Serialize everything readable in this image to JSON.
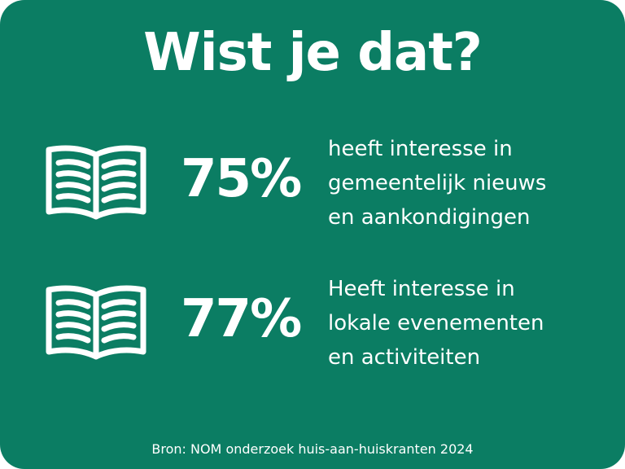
{
  "title": "Wist je dat?",
  "colors": {
    "background": "#0b7d63",
    "text": "#ffffff"
  },
  "stats": [
    {
      "icon": "open-book-icon",
      "percent": "75%",
      "lines": [
        "heeft interesse in",
        "gemeentelijk nieuws",
        "en aankondigingen"
      ]
    },
    {
      "icon": "open-book-icon",
      "percent": "77%",
      "lines": [
        "Heeft interesse in",
        "lokale evenementen",
        "en activiteiten"
      ]
    }
  ],
  "source": "Bron: NOM onderzoek huis-aan-huiskranten 2024"
}
